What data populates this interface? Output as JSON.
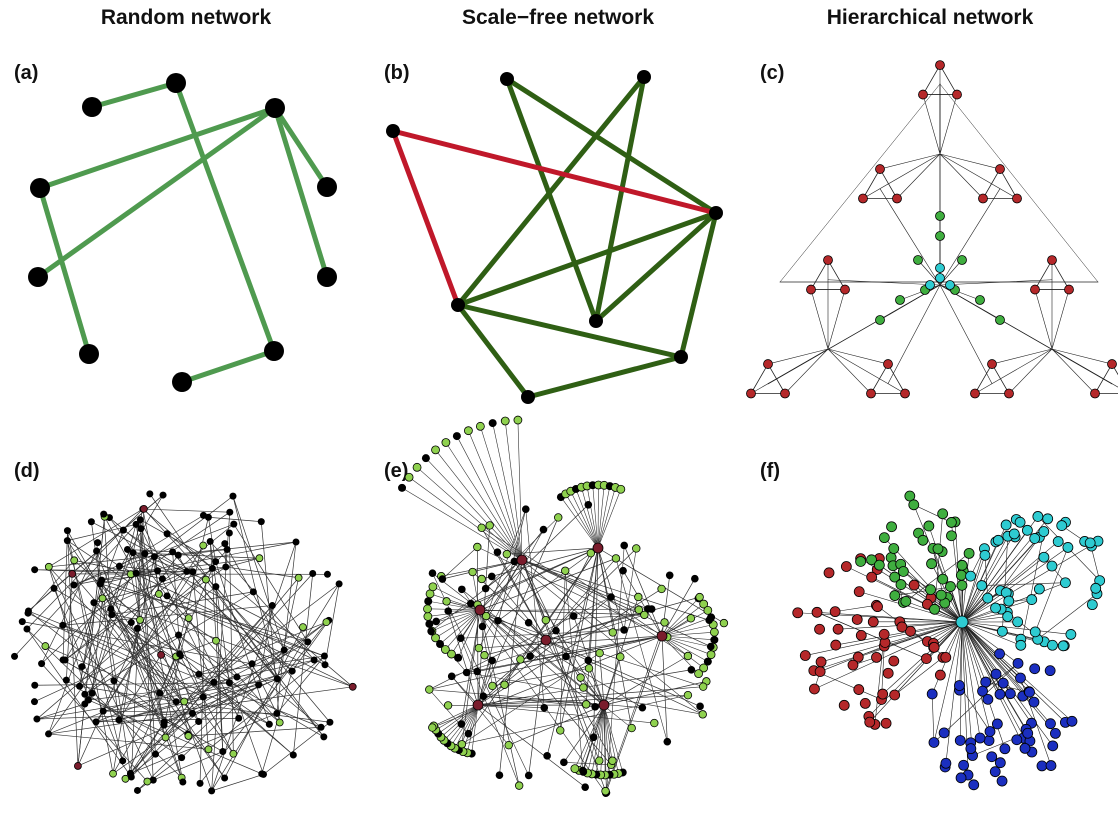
{
  "column_titles": [
    "Random network",
    "Scale−free network",
    "Hierarchical network"
  ],
  "panels": {
    "a": "(a)",
    "b": "(b)",
    "c": "(c)",
    "d": "(d)",
    "e": "(e)",
    "f": "(f)"
  },
  "colors": {
    "node_black": "#000000",
    "edge_green_light": "#4f9a4f",
    "edge_green_dark": "#2f5f14",
    "edge_red": "#c0182a",
    "node_red": "#b5282a",
    "node_green": "#3fae3f",
    "node_cyan": "#2ecbd1",
    "node_blue": "#1b2fc0",
    "node_lime": "#8fd14f",
    "node_maroon": "#7a1c2c"
  }
}
